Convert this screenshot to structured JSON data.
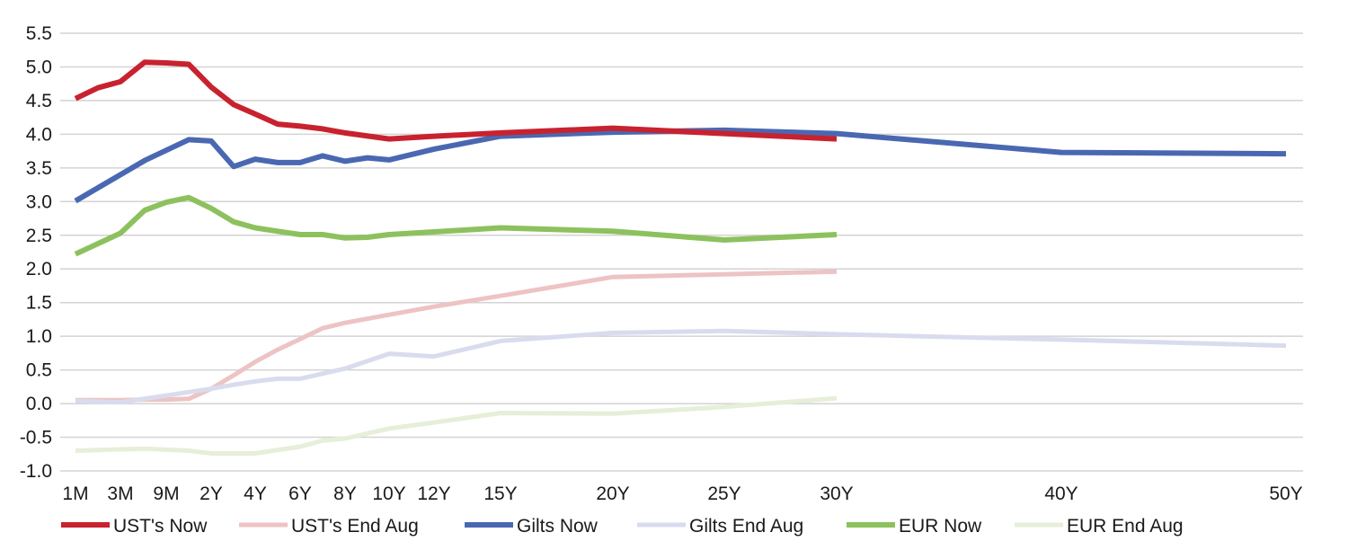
{
  "chart_data": {
    "type": "line",
    "title": "",
    "xlabel": "",
    "ylabel": "",
    "ylim": [
      -1.0,
      5.5
    ],
    "y_ticks": [
      "5.5",
      "5.0",
      "4.5",
      "4.0",
      "3.5",
      "3.0",
      "2.5",
      "2.0",
      "1.5",
      "1.0",
      "0.5",
      "0.0",
      "-0.5",
      "-1.0"
    ],
    "x_ticks": [
      "1M",
      "3M",
      "9M",
      "2Y",
      "4Y",
      "6Y",
      "8Y",
      "10Y",
      "12Y",
      "15Y",
      "20Y",
      "25Y",
      "30Y",
      "40Y",
      "50Y"
    ],
    "grid": "horizontal",
    "legend_position": "bottom",
    "tenors": [
      "1M",
      "2M",
      "3M",
      "6M",
      "9M",
      "1Y",
      "2Y",
      "3Y",
      "4Y",
      "5Y",
      "6Y",
      "7Y",
      "8Y",
      "9Y",
      "10Y",
      "12Y",
      "15Y",
      "20Y",
      "25Y",
      "30Y",
      "40Y",
      "50Y"
    ],
    "series": [
      {
        "name": "UST's Now",
        "color": "#c8222f",
        "width": 6,
        "points": [
          [
            "1M",
            4.53
          ],
          [
            "2M",
            4.69
          ],
          [
            "3M",
            4.78
          ],
          [
            "6M",
            5.07
          ],
          [
            "9M",
            5.06
          ],
          [
            "1Y",
            5.04
          ],
          [
            "2Y",
            4.7
          ],
          [
            "3Y",
            4.44
          ],
          [
            "4Y",
            4.3
          ],
          [
            "5Y",
            4.15
          ],
          [
            "6Y",
            4.12
          ],
          [
            "7Y",
            4.08
          ],
          [
            "8Y",
            4.02
          ],
          [
            "10Y",
            3.93
          ],
          [
            "12Y",
            3.97
          ],
          [
            "15Y",
            4.02
          ],
          [
            "20Y",
            4.09
          ],
          [
            "25Y",
            4.01
          ],
          [
            "30Y",
            3.93
          ]
        ]
      },
      {
        "name": "UST's End Aug",
        "color": "#edc3c3",
        "width": 5,
        "points": [
          [
            "1M",
            0.05
          ],
          [
            "2M",
            0.05
          ],
          [
            "3M",
            0.05
          ],
          [
            "6M",
            0.06
          ],
          [
            "9M",
            0.06
          ],
          [
            "1Y",
            0.07
          ],
          [
            "2Y",
            0.22
          ],
          [
            "3Y",
            0.42
          ],
          [
            "4Y",
            0.62
          ],
          [
            "5Y",
            0.8
          ],
          [
            "6Y",
            0.96
          ],
          [
            "7Y",
            1.12
          ],
          [
            "8Y",
            1.2
          ],
          [
            "10Y",
            1.32
          ],
          [
            "12Y",
            1.44
          ],
          [
            "15Y",
            1.6
          ],
          [
            "20Y",
            1.88
          ],
          [
            "25Y",
            1.92
          ],
          [
            "30Y",
            1.96
          ]
        ]
      },
      {
        "name": "Gilts Now",
        "color": "#4a68b2",
        "width": 6,
        "points": [
          [
            "1M",
            3.01
          ],
          [
            "6M",
            3.61
          ],
          [
            "1Y",
            3.92
          ],
          [
            "2Y",
            3.9
          ],
          [
            "3Y",
            3.52
          ],
          [
            "4Y",
            3.63
          ],
          [
            "5Y",
            3.58
          ],
          [
            "6Y",
            3.58
          ],
          [
            "7Y",
            3.68
          ],
          [
            "8Y",
            3.6
          ],
          [
            "9Y",
            3.65
          ],
          [
            "10Y",
            3.62
          ],
          [
            "12Y",
            3.78
          ],
          [
            "15Y",
            3.97
          ],
          [
            "20Y",
            4.03
          ],
          [
            "25Y",
            4.06
          ],
          [
            "30Y",
            4.01
          ],
          [
            "40Y",
            3.73
          ],
          [
            "50Y",
            3.71
          ]
        ]
      },
      {
        "name": "Gilts End Aug",
        "color": "#d9dcee",
        "width": 5,
        "points": [
          [
            "1M",
            0.04
          ],
          [
            "3M",
            0.02
          ],
          [
            "9M",
            0.12
          ],
          [
            "1Y",
            0.17
          ],
          [
            "2Y",
            0.22
          ],
          [
            "3Y",
            0.28
          ],
          [
            "4Y",
            0.33
          ],
          [
            "5Y",
            0.37
          ],
          [
            "6Y",
            0.37
          ],
          [
            "8Y",
            0.52
          ],
          [
            "10Y",
            0.74
          ],
          [
            "12Y",
            0.7
          ],
          [
            "15Y",
            0.93
          ],
          [
            "20Y",
            1.05
          ],
          [
            "25Y",
            1.08
          ],
          [
            "30Y",
            1.03
          ],
          [
            "40Y",
            0.95
          ],
          [
            "50Y",
            0.86
          ]
        ]
      },
      {
        "name": "EUR Now",
        "color": "#8dc15e",
        "width": 6,
        "points": [
          [
            "1M",
            2.22
          ],
          [
            "3M",
            2.53
          ],
          [
            "6M",
            2.87
          ],
          [
            "9M",
            2.99
          ],
          [
            "1Y",
            3.06
          ],
          [
            "2Y",
            2.9
          ],
          [
            "3Y",
            2.7
          ],
          [
            "4Y",
            2.61
          ],
          [
            "5Y",
            2.56
          ],
          [
            "6Y",
            2.51
          ],
          [
            "7Y",
            2.51
          ],
          [
            "8Y",
            2.46
          ],
          [
            "9Y",
            2.47
          ],
          [
            "10Y",
            2.51
          ],
          [
            "12Y",
            2.55
          ],
          [
            "15Y",
            2.61
          ],
          [
            "20Y",
            2.56
          ],
          [
            "25Y",
            2.43
          ],
          [
            "30Y",
            2.51
          ]
        ]
      },
      {
        "name": "EUR End Aug",
        "color": "#e6efd7",
        "width": 5,
        "points": [
          [
            "1M",
            -0.7
          ],
          [
            "3M",
            -0.68
          ],
          [
            "6M",
            -0.67
          ],
          [
            "1Y",
            -0.7
          ],
          [
            "2Y",
            -0.74
          ],
          [
            "4Y",
            -0.74
          ],
          [
            "6Y",
            -0.64
          ],
          [
            "7Y",
            -0.55
          ],
          [
            "8Y",
            -0.52
          ],
          [
            "10Y",
            -0.37
          ],
          [
            "12Y",
            -0.28
          ],
          [
            "15Y",
            -0.14
          ],
          [
            "20Y",
            -0.15
          ],
          [
            "25Y",
            -0.05
          ],
          [
            "30Y",
            0.08
          ]
        ]
      }
    ]
  }
}
